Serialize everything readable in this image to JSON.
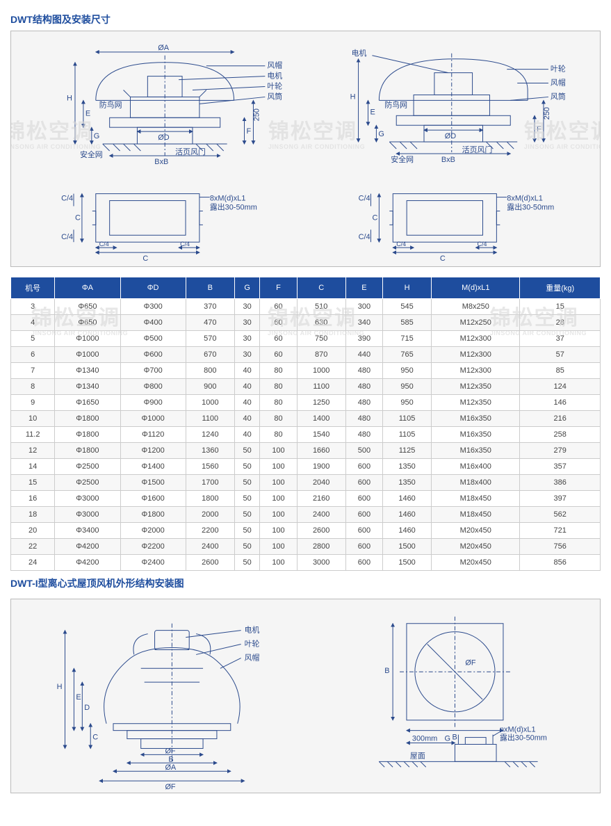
{
  "section1_title": "DWT结构图及安装尺寸",
  "section2_title": "DWT-I型离心式屋顶风机外形结构安装图",
  "watermark_cn": "锦松空调",
  "watermark_en": "JINSONG AIR CONDITIONING",
  "diagram1": {
    "left_top_labels": {
      "phiA": "ØA",
      "fengmao": "风帽",
      "dianji": "电机",
      "yelun": "叶轮",
      "fengtong": "风筒",
      "fangniao": "防鸟网",
      "phiD": "ØD",
      "anquan": "安全网",
      "huoye": "活页风门",
      "bxb": "BxB",
      "H": "H",
      "E": "E",
      "G": "G",
      "F": "F",
      "v250": "250"
    },
    "right_top_labels": {
      "dianji": "电机",
      "yelun": "叶轮",
      "fengmao": "风帽",
      "fengtong": "风筒",
      "fangniao": "防鸟网",
      "phiD": "ØD",
      "anquan": "安全网",
      "huoye": "活页风门",
      "bxb": "BxB",
      "H": "H",
      "E": "E",
      "G": "G",
      "F": "F",
      "v250": "250"
    },
    "bottom_labels": {
      "C": "C",
      "C4": "C/4",
      "note1": "8xM(d)xL1",
      "note2": "露出30-50mm"
    }
  },
  "diagram2": {
    "left_labels": {
      "dianji": "电机",
      "yelun": "叶轮",
      "fengmao": "风帽",
      "H": "H",
      "E": "E",
      "D": "D",
      "C": "C",
      "phiF_small": "ØF",
      "B": "B",
      "phiA": "ØA",
      "phiF_big": "ØF"
    },
    "right_labels": {
      "B_v": "B",
      "B_h": "B",
      "phiF": "ØF",
      "g300": "300mm",
      "G": "G",
      "note1": "nxM(d)xL1",
      "note2": "露出30-50mm",
      "wumian": "屋面"
    }
  },
  "table": {
    "headers": [
      "机号",
      "ΦA",
      "ΦD",
      "B",
      "G",
      "F",
      "C",
      "E",
      "H",
      "M(d)xL1",
      "重量(kg)"
    ],
    "rows": [
      [
        "3",
        "Φ650",
        "Φ300",
        "370",
        "30",
        "60",
        "510",
        "300",
        "545",
        "M8x250",
        "15"
      ],
      [
        "4",
        "Φ650",
        "Φ400",
        "470",
        "30",
        "60",
        "630",
        "340",
        "585",
        "M12x250",
        "28"
      ],
      [
        "5",
        "Φ1000",
        "Φ500",
        "570",
        "30",
        "60",
        "750",
        "390",
        "715",
        "M12x300",
        "37"
      ],
      [
        "6",
        "Φ1000",
        "Φ600",
        "670",
        "30",
        "60",
        "870",
        "440",
        "765",
        "M12x300",
        "57"
      ],
      [
        "7",
        "Φ1340",
        "Φ700",
        "800",
        "40",
        "80",
        "1000",
        "480",
        "950",
        "M12x300",
        "85"
      ],
      [
        "8",
        "Φ1340",
        "Φ800",
        "900",
        "40",
        "80",
        "1100",
        "480",
        "950",
        "M12x350",
        "124"
      ],
      [
        "9",
        "Φ1650",
        "Φ900",
        "1000",
        "40",
        "80",
        "1250",
        "480",
        "950",
        "M12x350",
        "146"
      ],
      [
        "10",
        "Φ1800",
        "Φ1000",
        "1100",
        "40",
        "80",
        "1400",
        "480",
        "1105",
        "M16x350",
        "216"
      ],
      [
        "11.2",
        "Φ1800",
        "Φ1120",
        "1240",
        "40",
        "80",
        "1540",
        "480",
        "1105",
        "M16x350",
        "258"
      ],
      [
        "12",
        "Φ1800",
        "Φ1200",
        "1360",
        "50",
        "100",
        "1660",
        "500",
        "1125",
        "M16x350",
        "279"
      ],
      [
        "14",
        "Φ2500",
        "Φ1400",
        "1560",
        "50",
        "100",
        "1900",
        "600",
        "1350",
        "M16x400",
        "357"
      ],
      [
        "15",
        "Φ2500",
        "Φ1500",
        "1700",
        "50",
        "100",
        "2040",
        "600",
        "1350",
        "M18x400",
        "386"
      ],
      [
        "16",
        "Φ3000",
        "Φ1600",
        "1800",
        "50",
        "100",
        "2160",
        "600",
        "1460",
        "M18x450",
        "397"
      ],
      [
        "18",
        "Φ3000",
        "Φ1800",
        "2000",
        "50",
        "100",
        "2400",
        "600",
        "1460",
        "M18x450",
        "562"
      ],
      [
        "20",
        "Φ3400",
        "Φ2000",
        "2200",
        "50",
        "100",
        "2600",
        "600",
        "1460",
        "M20x450",
        "721"
      ],
      [
        "22",
        "Φ4200",
        "Φ2200",
        "2400",
        "50",
        "100",
        "2800",
        "600",
        "1500",
        "M20x450",
        "756"
      ],
      [
        "24",
        "Φ4200",
        "Φ2400",
        "2600",
        "50",
        "100",
        "3000",
        "600",
        "1500",
        "M20x450",
        "856"
      ]
    ]
  },
  "colors": {
    "brand_blue": "#1e4d9e",
    "box_border": "#bbbbbb",
    "box_bg": "#f5f5f5",
    "grid": "#cccccc",
    "svg_stroke": "#2b4a8c",
    "dim_stroke": "#2b4a8c"
  }
}
